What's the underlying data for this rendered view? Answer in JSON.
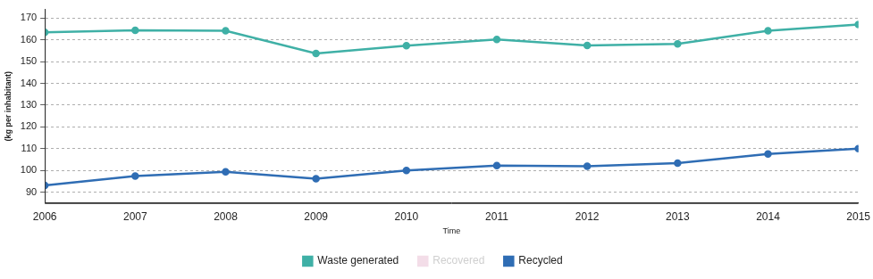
{
  "chart_data": {
    "type": "line",
    "x_label": "Time",
    "y_label": "(kg per inhabitant)",
    "x": [
      2006,
      2007,
      2008,
      2009,
      2010,
      2011,
      2012,
      2013,
      2014,
      2015
    ],
    "series": [
      {
        "name": "Waste generated",
        "color": "#3fb0a6",
        "values": [
          163.5,
          164.4,
          164.2,
          153.8,
          157.3,
          160.2,
          157.4,
          158.2,
          164.2,
          167.1
        ]
      },
      {
        "name": "Recovered",
        "color": "#f3dde8",
        "values": [
          null,
          null,
          null,
          null,
          null,
          null,
          null,
          null,
          null,
          null
        ]
      },
      {
        "name": "Recycled",
        "color": "#2f6db4",
        "values": [
          93.1,
          97.4,
          99.4,
          96.2,
          100.0,
          102.2,
          101.9,
          103.4,
          107.6,
          110.0
        ]
      }
    ],
    "xlim": [
      2006,
      2015
    ],
    "xticks": [
      2006,
      2007,
      2008,
      2009,
      2010,
      2011,
      2012,
      2013,
      2014,
      2015
    ],
    "ylim": [
      85,
      174
    ],
    "yticks": [
      90,
      100,
      110,
      120,
      130,
      140,
      150,
      160,
      170
    ],
    "grid": true,
    "legend": "bottom",
    "marker": "circle"
  }
}
